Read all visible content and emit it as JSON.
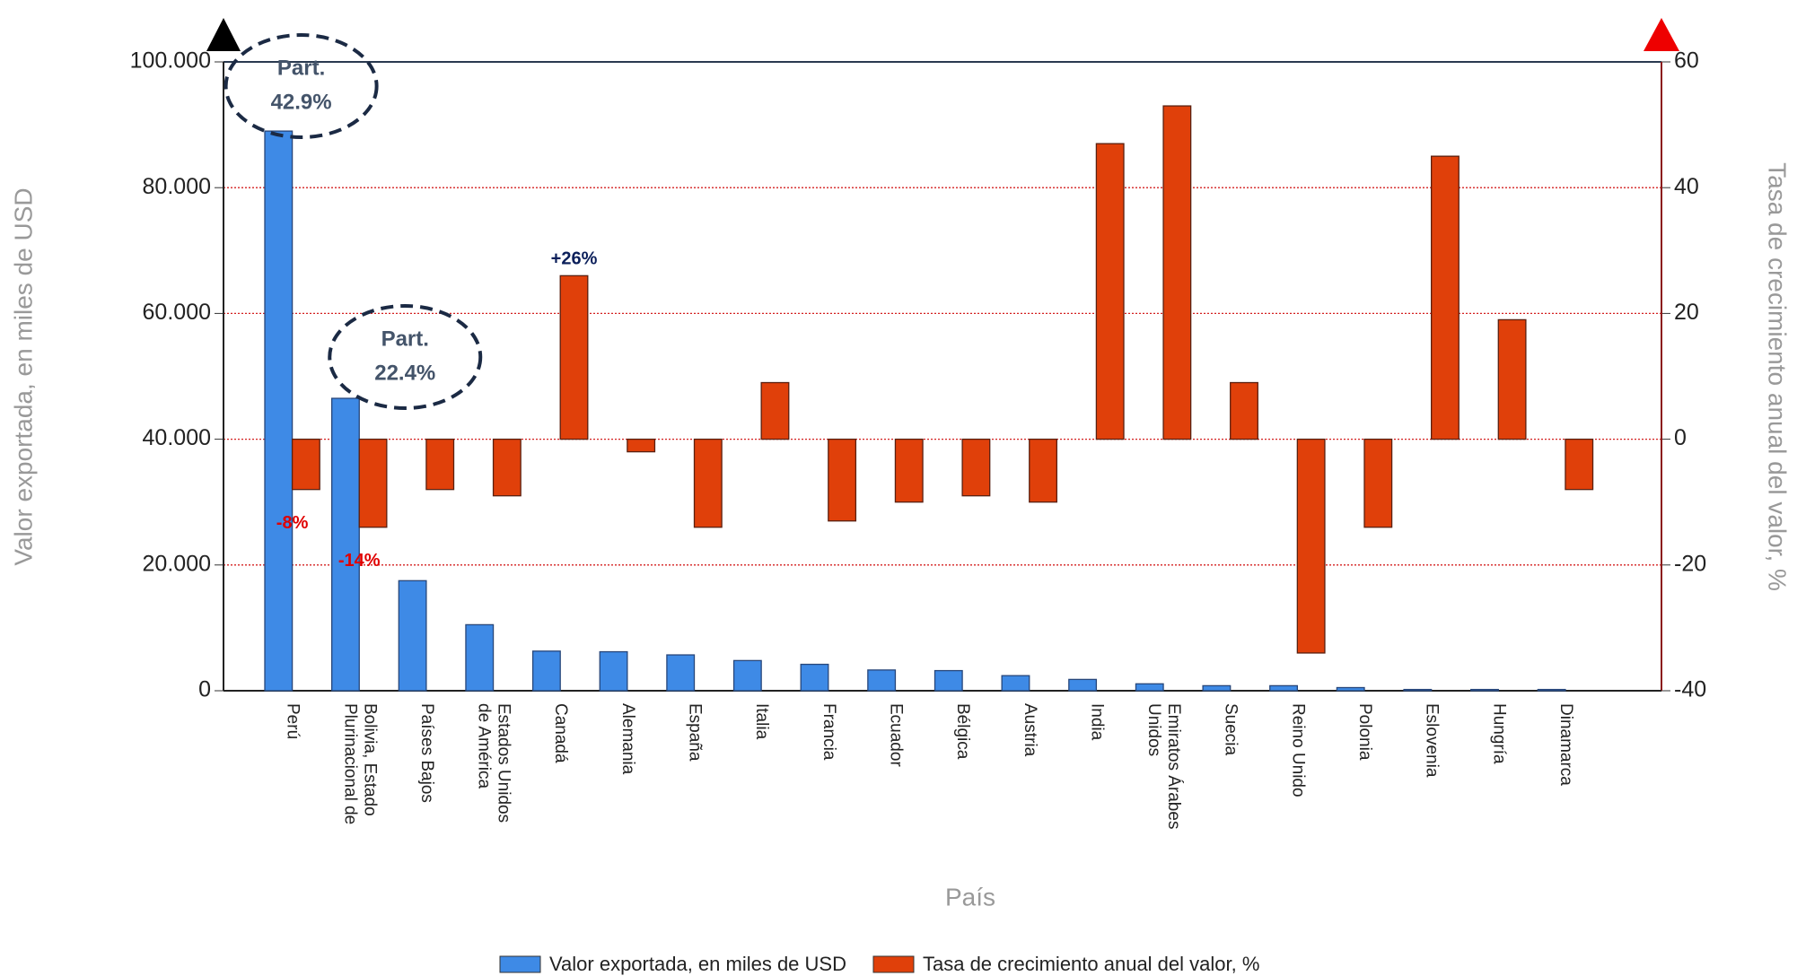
{
  "chart_data": {
    "type": "bar",
    "x_label": "País",
    "y_label": "Valor exportada, en miles de USD",
    "y2_label": "Tasa de crecimiento anual del valor, %",
    "categories": [
      "Perú",
      "Bolivia, Estado Plurinacional de",
      "Países Bajos",
      "Estados Unidos de América",
      "Canadá",
      "Alemania",
      "España",
      "Italia",
      "Francia",
      "Ecuador",
      "Bélgica",
      "Austria",
      "India",
      "Emiratos Árabes Unidos",
      "Suecia",
      "Reino Unido",
      "Polonia",
      "Eslovenia",
      "Hungría",
      "Dinamarca"
    ],
    "series": [
      {
        "name": "Valor exportada, en miles de USD",
        "color": "#3e8ae6",
        "values": [
          89000,
          46500,
          17500,
          10500,
          6300,
          6200,
          5700,
          4800,
          4200,
          3300,
          3200,
          2400,
          1800,
          1100,
          800,
          800,
          500,
          200,
          200,
          200
        ]
      },
      {
        "name": "Tasa de crecimiento anual del valor, %",
        "color": "#e0400a",
        "axis": "y2",
        "values": [
          -8,
          -14,
          -8,
          -9,
          26,
          -2,
          -14,
          9,
          -13,
          -10,
          -9,
          -10,
          47,
          53,
          9,
          -34,
          -14,
          45,
          19,
          -8
        ],
        "value_labels": [
          "-8%",
          "-14%",
          null,
          null,
          "+26%",
          null,
          null,
          null,
          null,
          null,
          null,
          null,
          null,
          null,
          null,
          null,
          null,
          null,
          null,
          null
        ]
      }
    ],
    "annotations": [
      {
        "lines": [
          "Part.",
          "42.9%"
        ],
        "category": 0
      },
      {
        "lines": [
          "Part.",
          "22.4%"
        ],
        "category": 1
      }
    ],
    "ylim": [
      0,
      100000
    ],
    "yticks": [
      0,
      {
        "value": 20000,
        "label": "20.000"
      },
      {
        "value": 40000,
        "label": "40.000"
      },
      {
        "value": 60000,
        "label": "60.000"
      },
      {
        "value": 80000,
        "label": "80.000"
      },
      {
        "value": 100000,
        "label": "100.000"
      }
    ],
    "y2lim": [
      -40,
      60
    ],
    "y2ticks": [
      -40,
      -20,
      0,
      20,
      40,
      60
    ],
    "grid": true,
    "grid_color": "#d42020",
    "legend": "bottom"
  }
}
